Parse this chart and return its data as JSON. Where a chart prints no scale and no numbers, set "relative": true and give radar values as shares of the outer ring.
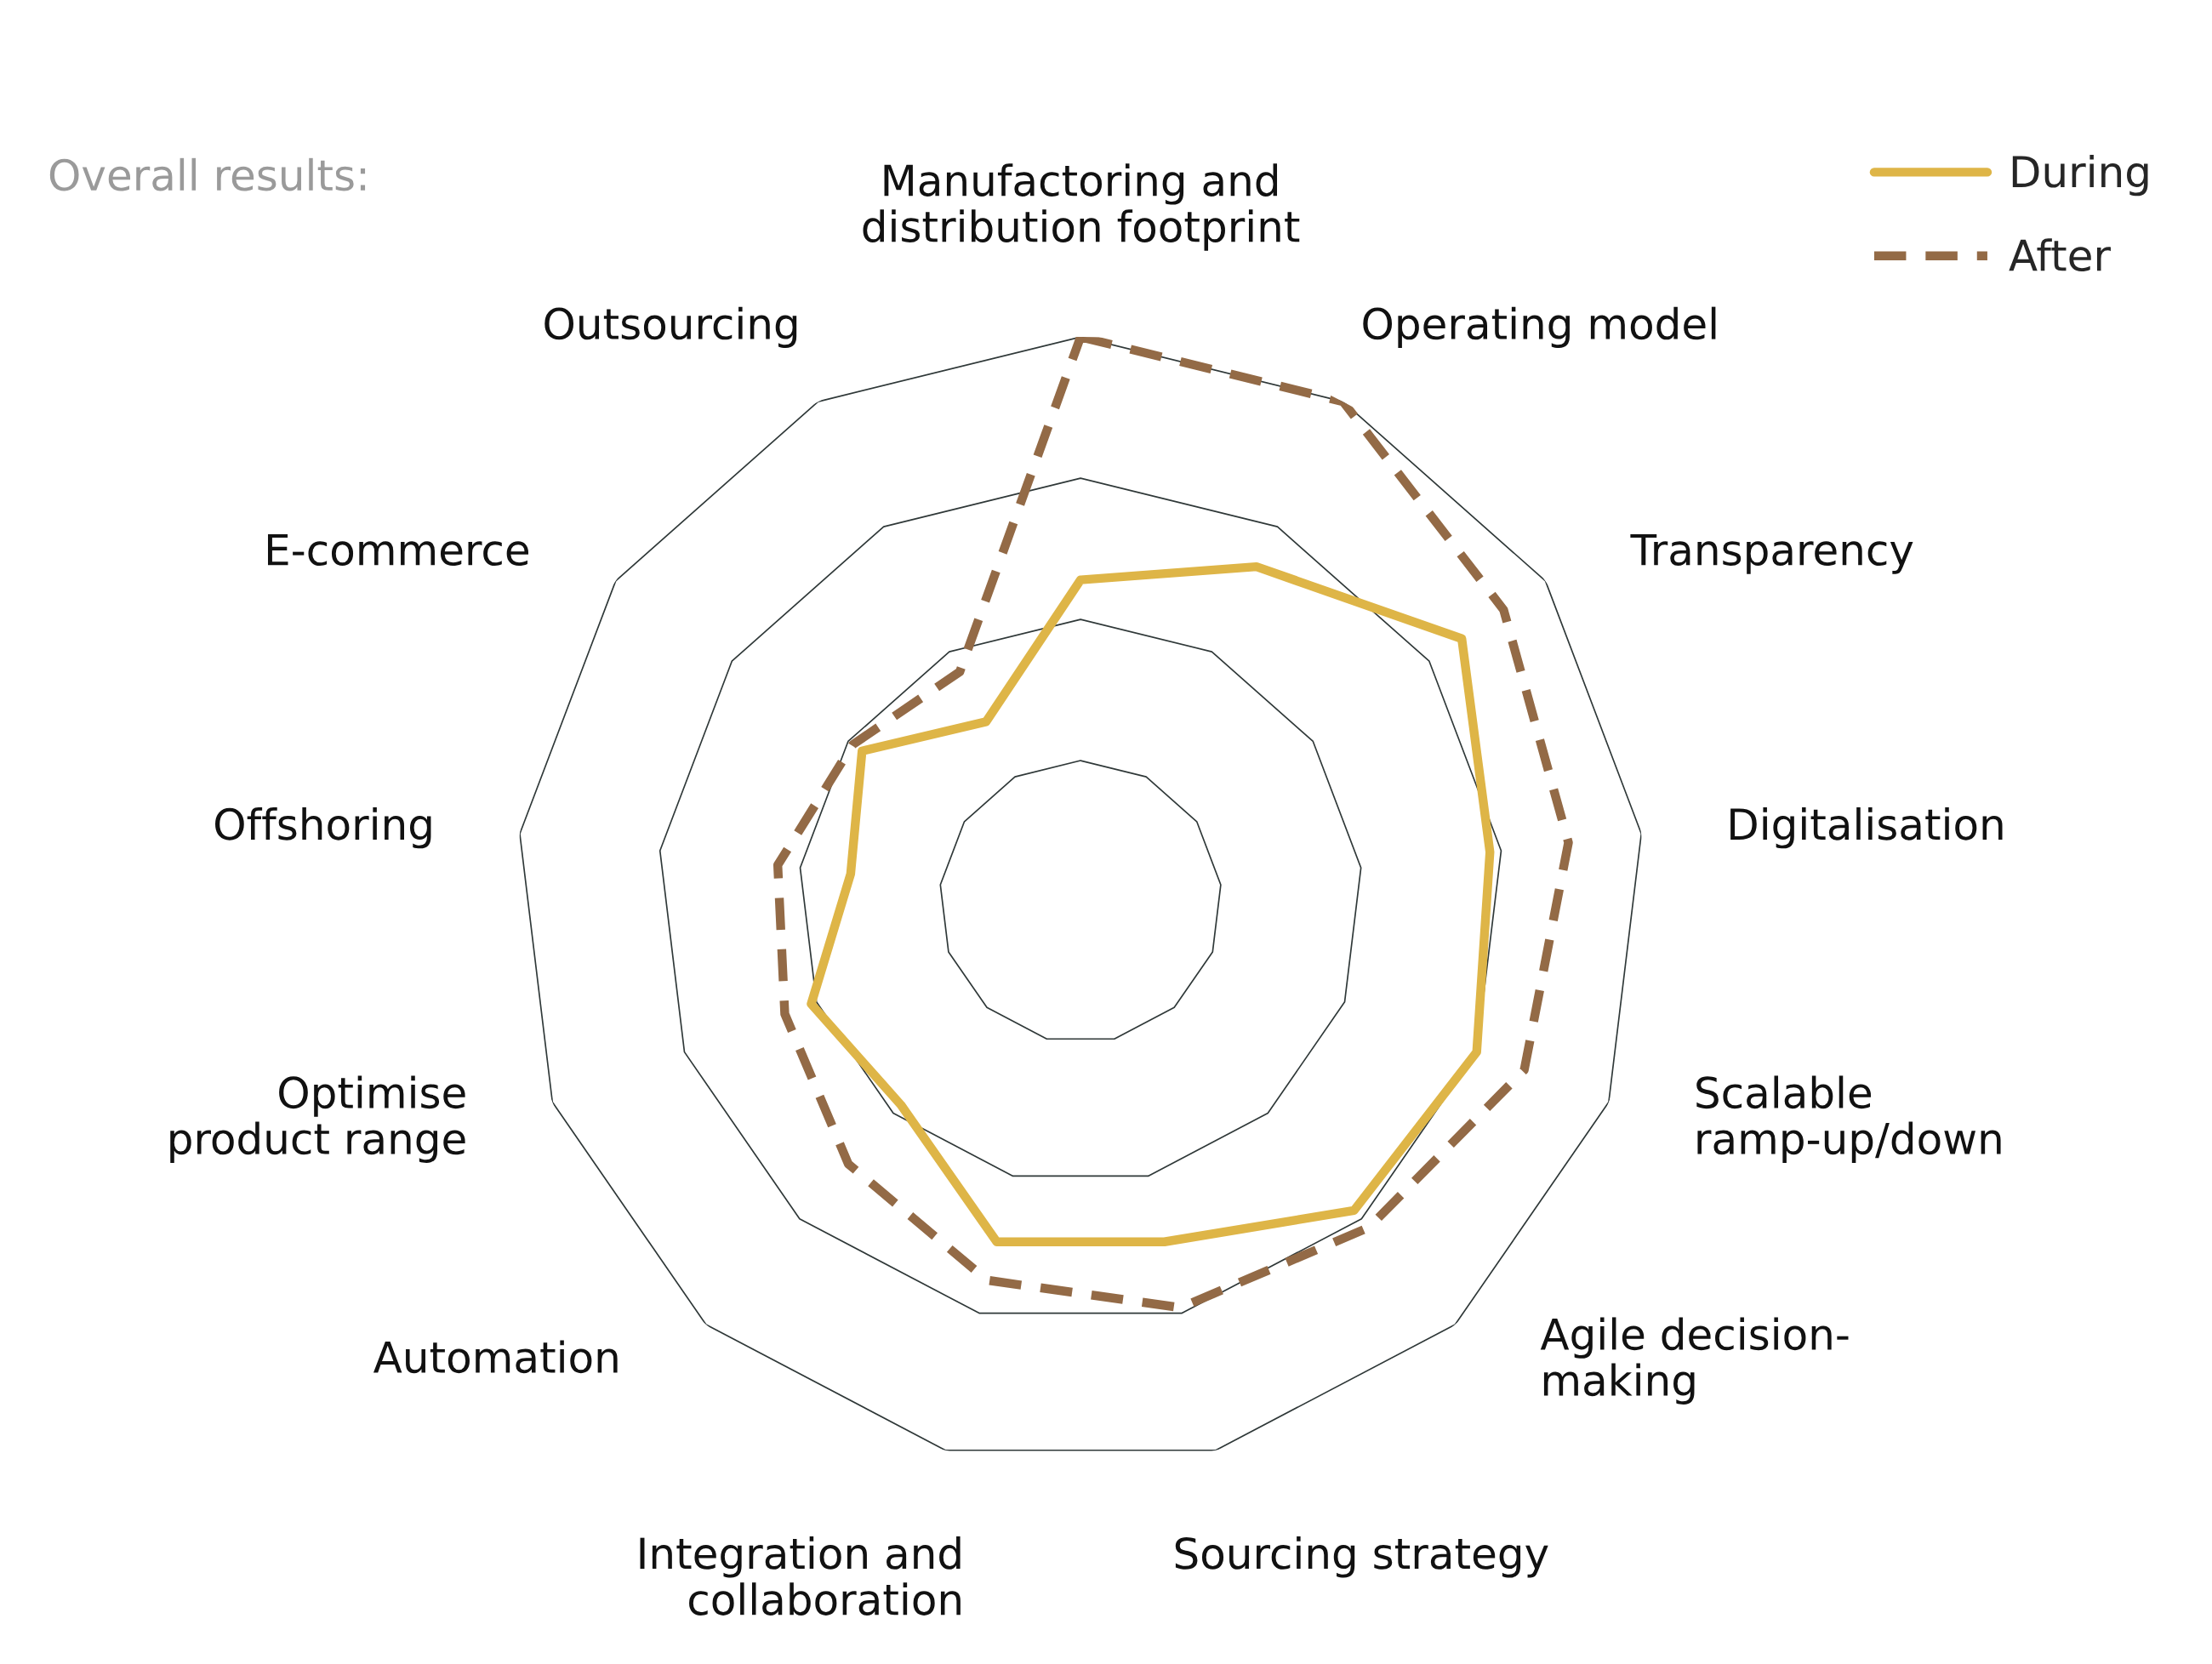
{
  "chart_data": {
    "type": "radar",
    "title": "Overall results:",
    "categories": [
      "Manufactoring and\ndistribution footprint",
      "Operating model",
      "Transparency",
      "Digitalisation",
      "Scalable\nramp-up/down",
      "Agile decision-\nmaking",
      "Sourcing strategy",
      "Integration and\ncollaboration",
      "Automation",
      "Optimise\nproduct range",
      "Offshoring",
      "E-commerce",
      "Outsourcing"
    ],
    "relative": true,
    "grid": true,
    "legend": "top right",
    "series": [
      {
        "name": "During",
        "color": "#deb547",
        "line_style": "solid",
        "values": [
          0.57,
          0.67,
          0.82,
          0.73,
          0.75,
          0.73,
          0.62,
          0.62,
          0.48,
          0.51,
          0.41,
          0.47,
          0.36
        ]
      },
      {
        "name": "After",
        "color": "#936a46",
        "line_style": "dashed",
        "values": [
          1.0,
          1.0,
          0.91,
          0.87,
          0.84,
          0.77,
          0.74,
          0.69,
          0.62,
          0.56,
          0.54,
          0.49,
          0.46
        ]
      }
    ]
  }
}
